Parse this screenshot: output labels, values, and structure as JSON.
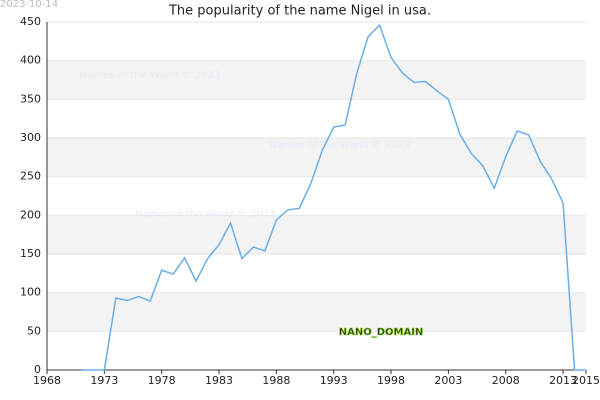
{
  "chart_data": {
    "type": "line",
    "title": "The popularity of the name Nigel in usa.",
    "date_stamp": "2023-10-14",
    "watermarks": [
      "Names of the World © 2023",
      "Names of the World © 2023",
      "Names of the World © 2023"
    ],
    "badge": "NANO_DOMAIN",
    "x": [
      1971,
      1972,
      1973,
      1974,
      1975,
      1976,
      1977,
      1978,
      1979,
      1980,
      1981,
      1982,
      1983,
      1984,
      1985,
      1986,
      1987,
      1988,
      1989,
      1990,
      1991,
      1992,
      1993,
      1994,
      1995,
      1996,
      1997,
      1998,
      1999,
      2000,
      2001,
      2002,
      2003,
      2004,
      2005,
      2006,
      2007,
      2008,
      2009,
      2010,
      2011,
      2012,
      2013,
      2014,
      2015
    ],
    "series": [
      {
        "color": "#6aaee8",
        "values": [
          0,
          0,
          0,
          93,
          90,
          95,
          89,
          129,
          124,
          145,
          115,
          144,
          162,
          190,
          144,
          159,
          154,
          194,
          207,
          209,
          241,
          284,
          314,
          317,
          383,
          431,
          446,
          404,
          384,
          372,
          373,
          361,
          350,
          305,
          280,
          264,
          235,
          276,
          309,
          304,
          270,
          247,
          216,
          0,
          0
        ]
      }
    ],
    "xlim": [
      1968,
      2015
    ],
    "xticks": [
      1968,
      1973,
      1978,
      1983,
      1988,
      1993,
      1998,
      2003,
      2008,
      2013,
      2015
    ],
    "ylim": [
      0,
      450
    ],
    "yticks": [
      0,
      50,
      100,
      150,
      200,
      250,
      300,
      350,
      400,
      450
    ],
    "grid": true
  }
}
